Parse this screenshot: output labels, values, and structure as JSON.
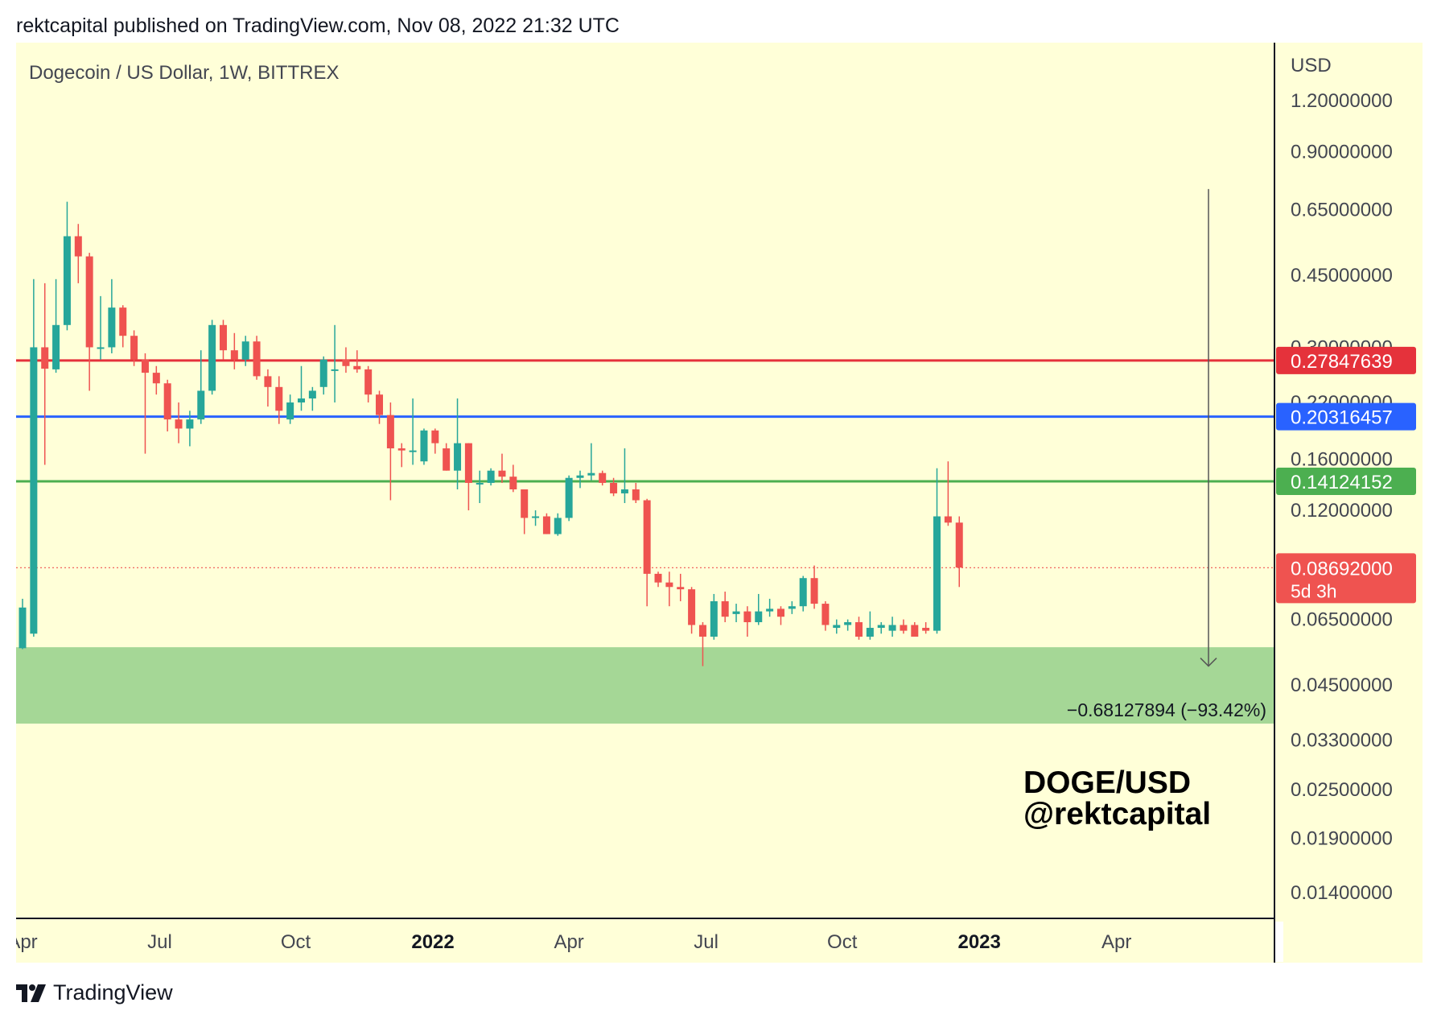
{
  "header": {
    "published_line": "rektcapital published on TradingView.com, Nov 08, 2022 21:32 UTC"
  },
  "footer": {
    "brand": "TradingView",
    "logo_icon": "tradingview-logo-icon"
  },
  "colors": {
    "chart_background": "#ffffd8",
    "up_candle": "#26a69a",
    "down_candle": "#ef5350",
    "resistance_red": "#e5323b",
    "level_blue": "#2962ff",
    "level_green": "#4caf50",
    "support_zone": "#a5d796",
    "price_dotted": "#ef5350",
    "measure_line": "#555555"
  },
  "chart_data": {
    "type": "candlestick",
    "title": "Dogecoin / US Dollar, 1W, BITTREX",
    "symbol_watermark": [
      "DOGE/USD",
      "@rektcapital"
    ],
    "price_axis_unit": "USD",
    "y_scale": "log",
    "y_ticks": [
      "1.20000000",
      "0.90000000",
      "0.65000000",
      "0.45000000",
      "0.30000000",
      "0.22000000",
      "0.16000000",
      "0.12000000",
      "0.06500000",
      "0.04500000",
      "0.03300000",
      "0.02500000",
      "0.01900000",
      "0.01400000"
    ],
    "x_ticks": [
      {
        "label": "Apr",
        "bold": false
      },
      {
        "label": "Jul",
        "bold": false
      },
      {
        "label": "Oct",
        "bold": false
      },
      {
        "label": "2022",
        "bold": true
      },
      {
        "label": "Apr",
        "bold": false
      },
      {
        "label": "Jul",
        "bold": false
      },
      {
        "label": "Oct",
        "bold": false
      },
      {
        "label": "2023",
        "bold": true
      },
      {
        "label": "Apr",
        "bold": false
      }
    ],
    "horizontal_levels": [
      {
        "name": "resistance",
        "value": 0.27847639,
        "label": "0.27847639",
        "color": "#e5323b"
      },
      {
        "name": "blue-level",
        "value": 0.20316457,
        "label": "0.20316457",
        "color": "#2962ff"
      },
      {
        "name": "green-level",
        "value": 0.14124152,
        "label": "0.14124152",
        "color": "#4caf50"
      }
    ],
    "current_price": {
      "value": 0.08692,
      "label": "0.08692000",
      "countdown": "5d 3h"
    },
    "support_zone": {
      "low": 0.0362,
      "high": 0.0556
    },
    "measure": {
      "from": 0.73,
      "to": 0.05,
      "label": "−0.68127894 (−93.42%)"
    },
    "candles": [
      {
        "o": 0.0553,
        "h": 0.073,
        "l": 0.055,
        "c": 0.0695
      },
      {
        "o": 0.06,
        "h": 0.44,
        "l": 0.059,
        "c": 0.3
      },
      {
        "o": 0.3,
        "h": 0.43,
        "l": 0.155,
        "c": 0.266
      },
      {
        "o": 0.265,
        "h": 0.44,
        "l": 0.26,
        "c": 0.34
      },
      {
        "o": 0.34,
        "h": 0.68,
        "l": 0.33,
        "c": 0.56
      },
      {
        "o": 0.56,
        "h": 0.6,
        "l": 0.43,
        "c": 0.5
      },
      {
        "o": 0.5,
        "h": 0.51,
        "l": 0.235,
        "c": 0.3
      },
      {
        "o": 0.3,
        "h": 0.4,
        "l": 0.28,
        "c": 0.3
      },
      {
        "o": 0.3,
        "h": 0.44,
        "l": 0.29,
        "c": 0.375
      },
      {
        "o": 0.375,
        "h": 0.38,
        "l": 0.3,
        "c": 0.32
      },
      {
        "o": 0.32,
        "h": 0.33,
        "l": 0.27,
        "c": 0.28
      },
      {
        "o": 0.28,
        "h": 0.29,
        "l": 0.165,
        "c": 0.26
      },
      {
        "o": 0.26,
        "h": 0.27,
        "l": 0.23,
        "c": 0.245
      },
      {
        "o": 0.245,
        "h": 0.25,
        "l": 0.187,
        "c": 0.2
      },
      {
        "o": 0.2,
        "h": 0.22,
        "l": 0.175,
        "c": 0.19
      },
      {
        "o": 0.19,
        "h": 0.21,
        "l": 0.172,
        "c": 0.2
      },
      {
        "o": 0.2,
        "h": 0.295,
        "l": 0.195,
        "c": 0.235
      },
      {
        "o": 0.235,
        "h": 0.35,
        "l": 0.23,
        "c": 0.34
      },
      {
        "o": 0.34,
        "h": 0.35,
        "l": 0.28,
        "c": 0.295
      },
      {
        "o": 0.295,
        "h": 0.325,
        "l": 0.265,
        "c": 0.28
      },
      {
        "o": 0.28,
        "h": 0.32,
        "l": 0.27,
        "c": 0.31
      },
      {
        "o": 0.31,
        "h": 0.32,
        "l": 0.25,
        "c": 0.255
      },
      {
        "o": 0.255,
        "h": 0.265,
        "l": 0.215,
        "c": 0.24
      },
      {
        "o": 0.24,
        "h": 0.255,
        "l": 0.195,
        "c": 0.21
      },
      {
        "o": 0.2,
        "h": 0.23,
        "l": 0.195,
        "c": 0.22
      },
      {
        "o": 0.22,
        "h": 0.27,
        "l": 0.21,
        "c": 0.225
      },
      {
        "o": 0.225,
        "h": 0.24,
        "l": 0.21,
        "c": 0.235
      },
      {
        "o": 0.24,
        "h": 0.285,
        "l": 0.23,
        "c": 0.28
      },
      {
        "o": 0.265,
        "h": 0.34,
        "l": 0.22,
        "c": 0.265
      },
      {
        "o": 0.28,
        "h": 0.3,
        "l": 0.26,
        "c": 0.27
      },
      {
        "o": 0.27,
        "h": 0.295,
        "l": 0.26,
        "c": 0.265
      },
      {
        "o": 0.265,
        "h": 0.27,
        "l": 0.22,
        "c": 0.23
      },
      {
        "o": 0.23,
        "h": 0.235,
        "l": 0.195,
        "c": 0.205
      },
      {
        "o": 0.205,
        "h": 0.22,
        "l": 0.127,
        "c": 0.17
      },
      {
        "o": 0.17,
        "h": 0.175,
        "l": 0.153,
        "c": 0.168
      },
      {
        "o": 0.168,
        "h": 0.225,
        "l": 0.155,
        "c": 0.168
      },
      {
        "o": 0.158,
        "h": 0.19,
        "l": 0.155,
        "c": 0.188
      },
      {
        "o": 0.188,
        "h": 0.19,
        "l": 0.165,
        "c": 0.175
      },
      {
        "o": 0.17,
        "h": 0.175,
        "l": 0.15,
        "c": 0.15
      },
      {
        "o": 0.15,
        "h": 0.225,
        "l": 0.135,
        "c": 0.175
      },
      {
        "o": 0.175,
        "h": 0.175,
        "l": 0.12,
        "c": 0.14
      },
      {
        "o": 0.14,
        "h": 0.15,
        "l": 0.125,
        "c": 0.14
      },
      {
        "o": 0.14,
        "h": 0.152,
        "l": 0.138,
        "c": 0.15
      },
      {
        "o": 0.15,
        "h": 0.165,
        "l": 0.14,
        "c": 0.145
      },
      {
        "o": 0.145,
        "h": 0.155,
        "l": 0.133,
        "c": 0.135
      },
      {
        "o": 0.135,
        "h": 0.135,
        "l": 0.105,
        "c": 0.115
      },
      {
        "o": 0.115,
        "h": 0.12,
        "l": 0.11,
        "c": 0.116
      },
      {
        "o": 0.116,
        "h": 0.118,
        "l": 0.105,
        "c": 0.105
      },
      {
        "o": 0.105,
        "h": 0.118,
        "l": 0.104,
        "c": 0.115
      },
      {
        "o": 0.115,
        "h": 0.146,
        "l": 0.113,
        "c": 0.144
      },
      {
        "o": 0.144,
        "h": 0.15,
        "l": 0.136,
        "c": 0.146
      },
      {
        "o": 0.146,
        "h": 0.175,
        "l": 0.142,
        "c": 0.148
      },
      {
        "o": 0.148,
        "h": 0.15,
        "l": 0.138,
        "c": 0.14
      },
      {
        "o": 0.14,
        "h": 0.144,
        "l": 0.13,
        "c": 0.132
      },
      {
        "o": 0.132,
        "h": 0.17,
        "l": 0.125,
        "c": 0.135
      },
      {
        "o": 0.135,
        "h": 0.14,
        "l": 0.125,
        "c": 0.127
      },
      {
        "o": 0.127,
        "h": 0.128,
        "l": 0.07,
        "c": 0.084
      },
      {
        "o": 0.084,
        "h": 0.085,
        "l": 0.078,
        "c": 0.08
      },
      {
        "o": 0.08,
        "h": 0.085,
        "l": 0.07,
        "c": 0.078
      },
      {
        "o": 0.078,
        "h": 0.084,
        "l": 0.072,
        "c": 0.077
      },
      {
        "o": 0.077,
        "h": 0.078,
        "l": 0.06,
        "c": 0.063
      },
      {
        "o": 0.063,
        "h": 0.064,
        "l": 0.05,
        "c": 0.059
      },
      {
        "o": 0.059,
        "h": 0.075,
        "l": 0.058,
        "c": 0.072
      },
      {
        "o": 0.072,
        "h": 0.076,
        "l": 0.064,
        "c": 0.066
      },
      {
        "o": 0.067,
        "h": 0.071,
        "l": 0.064,
        "c": 0.068
      },
      {
        "o": 0.068,
        "h": 0.07,
        "l": 0.059,
        "c": 0.064
      },
      {
        "o": 0.064,
        "h": 0.075,
        "l": 0.063,
        "c": 0.068
      },
      {
        "o": 0.068,
        "h": 0.073,
        "l": 0.066,
        "c": 0.069
      },
      {
        "o": 0.069,
        "h": 0.07,
        "l": 0.063,
        "c": 0.066
      },
      {
        "o": 0.069,
        "h": 0.072,
        "l": 0.067,
        "c": 0.07
      },
      {
        "o": 0.07,
        "h": 0.083,
        "l": 0.068,
        "c": 0.082
      },
      {
        "o": 0.082,
        "h": 0.088,
        "l": 0.069,
        "c": 0.071
      },
      {
        "o": 0.071,
        "h": 0.072,
        "l": 0.061,
        "c": 0.063
      },
      {
        "o": 0.062,
        "h": 0.065,
        "l": 0.06,
        "c": 0.063
      },
      {
        "o": 0.063,
        "h": 0.065,
        "l": 0.061,
        "c": 0.064
      },
      {
        "o": 0.064,
        "h": 0.066,
        "l": 0.058,
        "c": 0.059
      },
      {
        "o": 0.059,
        "h": 0.068,
        "l": 0.058,
        "c": 0.062
      },
      {
        "o": 0.062,
        "h": 0.064,
        "l": 0.06,
        "c": 0.063
      },
      {
        "o": 0.061,
        "h": 0.066,
        "l": 0.059,
        "c": 0.063
      },
      {
        "o": 0.063,
        "h": 0.065,
        "l": 0.06,
        "c": 0.061
      },
      {
        "o": 0.063,
        "h": 0.064,
        "l": 0.06,
        "c": 0.059
      },
      {
        "o": 0.062,
        "h": 0.064,
        "l": 0.06,
        "c": 0.061
      },
      {
        "o": 0.061,
        "h": 0.152,
        "l": 0.06,
        "c": 0.116
      },
      {
        "o": 0.116,
        "h": 0.158,
        "l": 0.11,
        "c": 0.112
      },
      {
        "o": 0.112,
        "h": 0.116,
        "l": 0.078,
        "c": 0.087
      }
    ]
  }
}
